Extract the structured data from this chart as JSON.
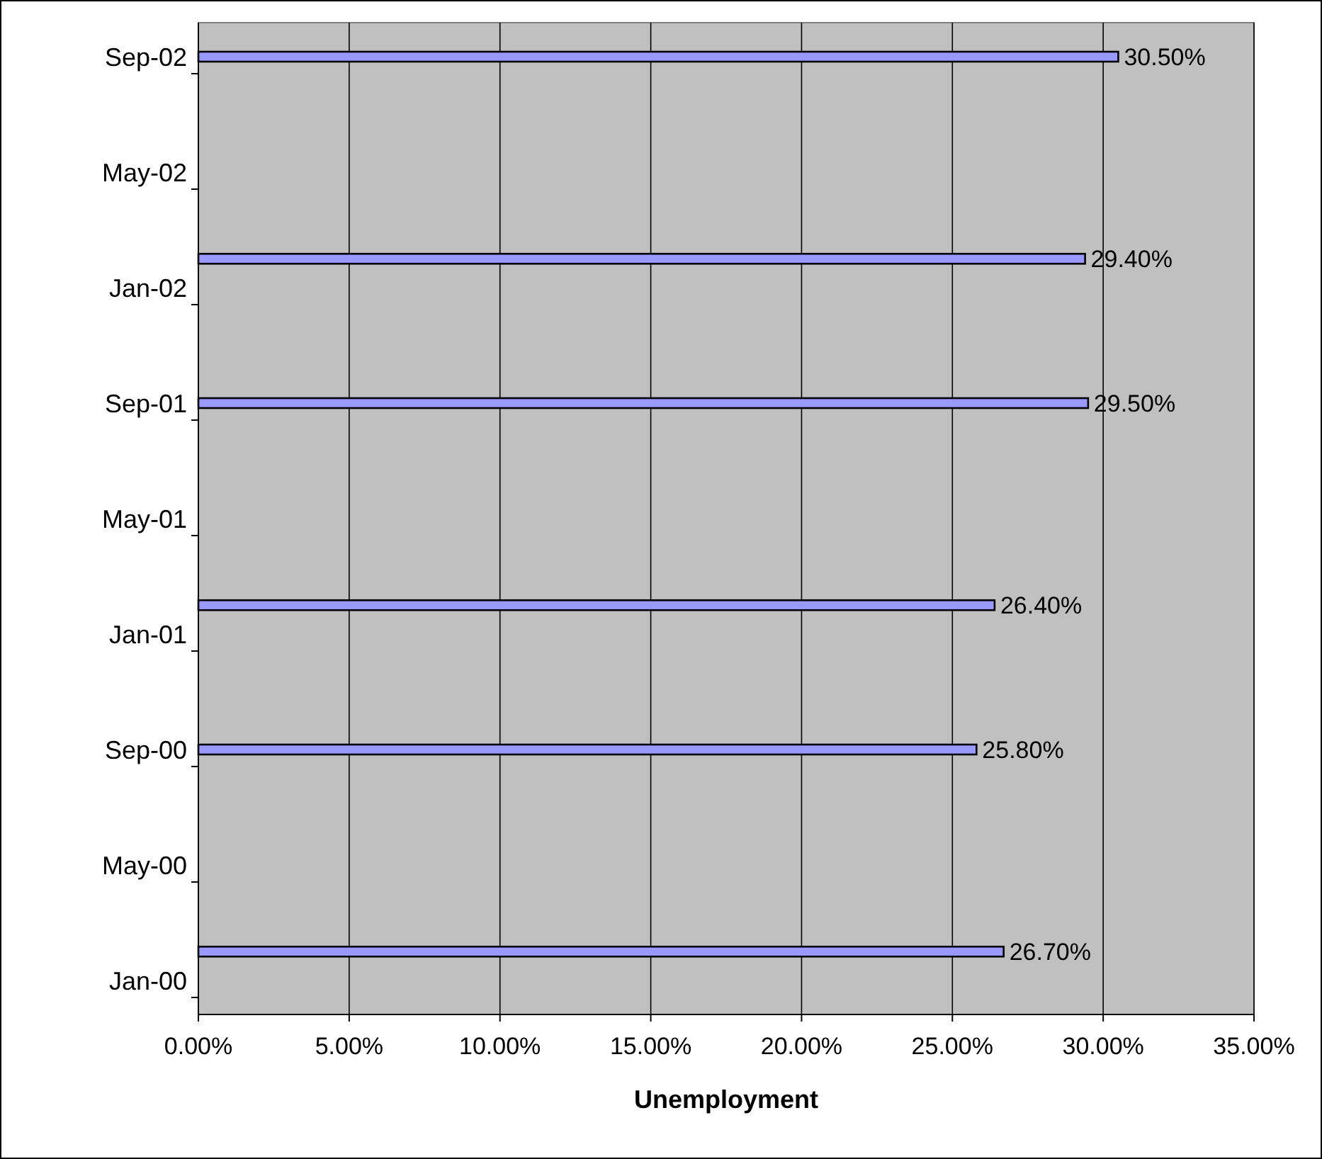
{
  "chart_data": {
    "type": "bar",
    "orientation": "horizontal",
    "xlabel": "Unemployment",
    "categories": [
      "Sep-02",
      null,
      null,
      null,
      "May-02",
      null,
      null,
      null,
      "Jan-02",
      null,
      null,
      null,
      "Sep-01",
      null,
      null,
      null,
      "May-01",
      null,
      null,
      null,
      "Jan-01",
      null,
      null,
      null,
      "Sep-00",
      null,
      null,
      null,
      "May-00",
      null,
      null,
      null,
      "Jan-00"
    ],
    "values": [
      30.5,
      null,
      null,
      null,
      null,
      null,
      null,
      29.4,
      null,
      null,
      null,
      null,
      29.5,
      null,
      null,
      null,
      null,
      null,
      null,
      26.4,
      null,
      null,
      null,
      null,
      25.8,
      null,
      null,
      null,
      null,
      null,
      null,
      26.7,
      null
    ],
    "value_labels": [
      "30.50%",
      null,
      null,
      null,
      null,
      null,
      null,
      "29.40%",
      null,
      null,
      null,
      null,
      "29.50%",
      null,
      null,
      null,
      null,
      null,
      null,
      "26.40%",
      null,
      null,
      null,
      null,
      "25.80%",
      null,
      null,
      null,
      null,
      null,
      null,
      "26.70%",
      null
    ],
    "color": "#9999ff",
    "xlim": [
      0,
      35
    ],
    "xticks": [
      {
        "value": 0,
        "label": "0.00%"
      },
      {
        "value": 5,
        "label": "5.00%"
      },
      {
        "value": 10,
        "label": "10.00%"
      },
      {
        "value": 15,
        "label": "15.00%"
      },
      {
        "value": 20,
        "label": "20.00%"
      },
      {
        "value": 25,
        "label": "25.00%"
      },
      {
        "value": 30,
        "label": "30.00%"
      },
      {
        "value": 35,
        "label": "35.00%"
      }
    ],
    "grid": "x"
  }
}
